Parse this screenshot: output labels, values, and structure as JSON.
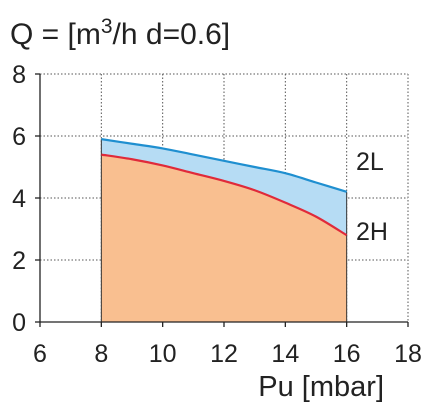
{
  "chart_data": {
    "type": "area",
    "title": "Q = [m3/h d=0.6]",
    "title_parts": {
      "prefix": "Q = [m",
      "superscript": "3",
      "suffix": "/h d=0.6]"
    },
    "xlabel": "Pu [mbar]",
    "ylabel": "",
    "xlim": [
      6,
      18
    ],
    "ylim": [
      0,
      8
    ],
    "x_ticks": [
      6,
      8,
      10,
      12,
      14,
      16,
      18
    ],
    "y_ticks": [
      0,
      2,
      4,
      6,
      8
    ],
    "grid": true,
    "series": [
      {
        "name": "2L",
        "x": [
          8,
          9,
          10,
          11,
          12,
          13,
          14,
          15,
          16
        ],
        "values": [
          5.9,
          5.75,
          5.6,
          5.4,
          5.2,
          5.0,
          4.8,
          4.5,
          4.2
        ]
      },
      {
        "name": "2H",
        "x": [
          8,
          9,
          10,
          11,
          12,
          13,
          14,
          15,
          16
        ],
        "values": [
          5.4,
          5.25,
          5.05,
          4.8,
          4.55,
          4.25,
          3.85,
          3.4,
          2.8
        ]
      }
    ],
    "colors": {
      "2L_line": "#1f8fd0",
      "2L_fill": "#b6dcf4",
      "2H_line": "#e02a3a",
      "2H_fill": "#f9bf90"
    }
  }
}
